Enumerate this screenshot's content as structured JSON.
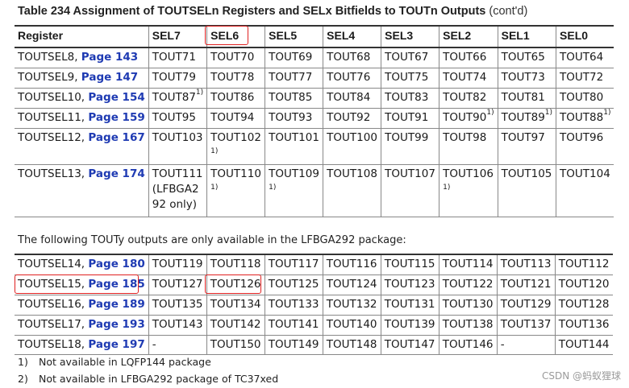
{
  "caption": {
    "title": "Table 234    Assignment of TOUTSELn Registers and SELx Bitfields to TOUTn Outputs",
    "suffix": "(cont'd)"
  },
  "table1": {
    "headers": [
      "Register",
      "SEL7",
      "SEL6",
      "SEL5",
      "SEL4",
      "SEL3",
      "SEL2",
      "SEL1",
      "SEL0"
    ],
    "rows": [
      {
        "reg": "TOUTSEL8, ",
        "page": "Page 143",
        "cells": [
          {
            "text": "TOUT71"
          },
          {
            "text": "TOUT70"
          },
          {
            "text": "TOUT69"
          },
          {
            "text": "TOUT68"
          },
          {
            "text": "TOUT67"
          },
          {
            "text": "TOUT66"
          },
          {
            "text": "TOUT65"
          },
          {
            "text": "TOUT64"
          }
        ]
      },
      {
        "reg": "TOUTSEL9, ",
        "page": "Page 147",
        "cells": [
          {
            "text": "TOUT79"
          },
          {
            "text": "TOUT78"
          },
          {
            "text": "TOUT77"
          },
          {
            "text": "TOUT76"
          },
          {
            "text": "TOUT75"
          },
          {
            "text": "TOUT74"
          },
          {
            "text": "TOUT73"
          },
          {
            "text": "TOUT72"
          }
        ]
      },
      {
        "reg": "TOUTSEL10, ",
        "page": "Page 154",
        "cells": [
          {
            "text": "TOUT87",
            "sup": "1)"
          },
          {
            "text": "TOUT86"
          },
          {
            "text": "TOUT85"
          },
          {
            "text": "TOUT84"
          },
          {
            "text": "TOUT83"
          },
          {
            "text": "TOUT82"
          },
          {
            "text": "TOUT81"
          },
          {
            "text": "TOUT80"
          }
        ]
      },
      {
        "reg": "TOUTSEL11, ",
        "page": "Page 159",
        "cells": [
          {
            "text": "TOUT95"
          },
          {
            "text": "TOUT94"
          },
          {
            "text": "TOUT93"
          },
          {
            "text": "TOUT92"
          },
          {
            "text": "TOUT91"
          },
          {
            "text": "TOUT90",
            "sup": "1)"
          },
          {
            "text": "TOUT89",
            "sup": "1)"
          },
          {
            "text": "TOUT88",
            "sup": "1)"
          }
        ]
      },
      {
        "reg": "TOUTSEL12, ",
        "page": "Page 167",
        "cells": [
          {
            "text": "TOUT103"
          },
          {
            "text": "TOUT102",
            "fn": "1)"
          },
          {
            "text": "TOUT101"
          },
          {
            "text": "TOUT100"
          },
          {
            "text": "TOUT99"
          },
          {
            "text": "TOUT98"
          },
          {
            "text": "TOUT97"
          },
          {
            "text": "TOUT96"
          }
        ]
      },
      {
        "reg": "TOUTSEL13, ",
        "page": "Page 174",
        "cells": [
          {
            "text": "TOUT111 (LFBGA2 92 only)",
            "wrap": true
          },
          {
            "text": "TOUT110",
            "fn": "1)"
          },
          {
            "text": "TOUT109",
            "fn": "1)"
          },
          {
            "text": "TOUT108"
          },
          {
            "text": "TOUT107"
          },
          {
            "text": "TOUT106",
            "fn": "1)"
          },
          {
            "text": "TOUT105"
          },
          {
            "text": "TOUT104"
          }
        ]
      }
    ]
  },
  "note": "The following TOUTy outputs are only available in the LFBGA292 package:",
  "table2": {
    "rows": [
      {
        "reg": "TOUTSEL14, ",
        "page": "Page 180",
        "cells": [
          {
            "text": "TOUT119"
          },
          {
            "text": "TOUT118"
          },
          {
            "text": "TOUT117"
          },
          {
            "text": "TOUT116"
          },
          {
            "text": "TOUT115"
          },
          {
            "text": "TOUT114"
          },
          {
            "text": "TOUT113"
          },
          {
            "text": "TOUT112"
          }
        ]
      },
      {
        "reg": "TOUTSEL15, ",
        "page": "Page 185",
        "cells": [
          {
            "text": "TOUT127"
          },
          {
            "text": "TOUT126"
          },
          {
            "text": "TOUT125"
          },
          {
            "text": "TOUT124"
          },
          {
            "text": "TOUT123"
          },
          {
            "text": "TOUT122"
          },
          {
            "text": "TOUT121"
          },
          {
            "text": "TOUT120"
          }
        ]
      },
      {
        "reg": "TOUTSEL16, ",
        "page": "Page 189",
        "cells": [
          {
            "text": "TOUT135"
          },
          {
            "text": "TOUT134"
          },
          {
            "text": "TOUT133"
          },
          {
            "text": "TOUT132"
          },
          {
            "text": "TOUT131"
          },
          {
            "text": "TOUT130"
          },
          {
            "text": "TOUT129"
          },
          {
            "text": "TOUT128"
          }
        ]
      },
      {
        "reg": "TOUTSEL17, ",
        "page": "Page 193",
        "cells": [
          {
            "text": "TOUT143"
          },
          {
            "text": "TOUT142"
          },
          {
            "text": "TOUT141"
          },
          {
            "text": "TOUT140"
          },
          {
            "text": "TOUT139"
          },
          {
            "text": "TOUT138"
          },
          {
            "text": "TOUT137"
          },
          {
            "text": "TOUT136"
          }
        ]
      },
      {
        "reg": "TOUTSEL18, ",
        "page": "Page 197",
        "cells": [
          {
            "text": "-"
          },
          {
            "text": "TOUT150"
          },
          {
            "text": "TOUT149"
          },
          {
            "text": "TOUT148"
          },
          {
            "text": "TOUT147"
          },
          {
            "text": "TOUT146"
          },
          {
            "text": "-"
          },
          {
            "text": "TOUT144"
          }
        ]
      }
    ]
  },
  "footnotes": [
    {
      "num": "1)",
      "text": "Not available in LQFP144 package"
    },
    {
      "num": "2)",
      "text": "Not available in LFBGA292 package of TC37xed"
    }
  ],
  "watermark": "CSDN @蚂蚁狸球",
  "colors": {
    "link": "#1f3bb3",
    "highlight": "#e02020",
    "rule": "#333333"
  }
}
